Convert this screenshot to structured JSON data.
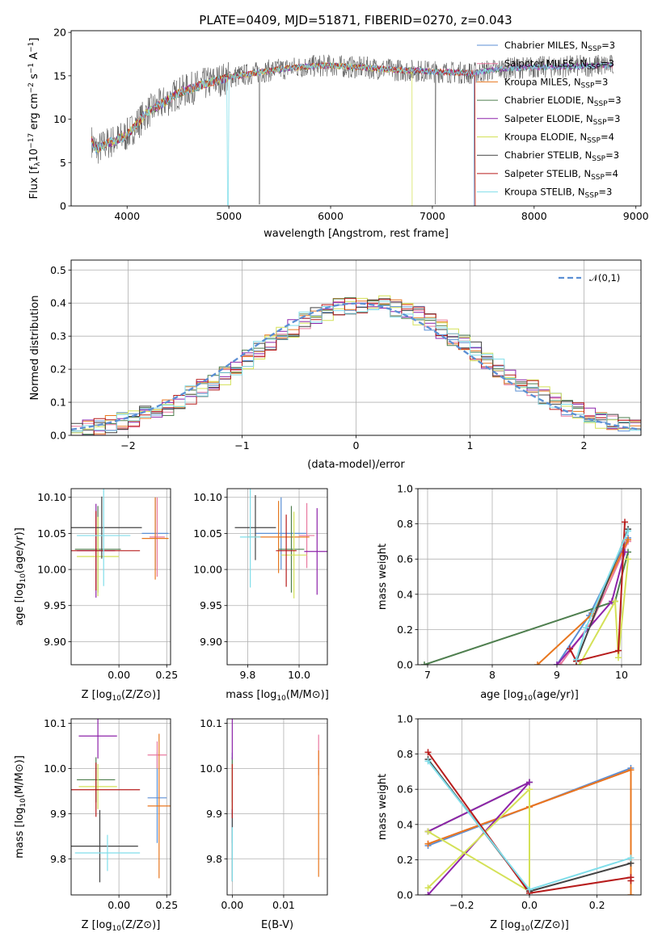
{
  "figure": {
    "title": "PLATE=0409, MJD=51871, FIBERID=0270, z=0.043"
  },
  "series": [
    {
      "name": "Chabrier MILES, N$_{SSP}$=3",
      "model": "Chabrier MILES",
      "nssp": "3",
      "color": "#5b8fd4"
    },
    {
      "name": "Salpeter MILES, N$_{SSP}$=3",
      "model": "Salpeter MILES",
      "nssp": "3",
      "color": "#e8799f"
    },
    {
      "name": "Kroupa MILES, N$_{SSP}$=3",
      "model": "Kroupa MILES",
      "nssp": "3",
      "color": "#e8771f"
    },
    {
      "name": "Chabrier ELODIE, N$_{SSP}$=3",
      "model": "Chabrier ELODIE",
      "nssp": "3",
      "color": "#4f7f4f"
    },
    {
      "name": "Salpeter ELODIE, N$_{SSP}$=3",
      "model": "Salpeter ELODIE",
      "nssp": "3",
      "color": "#8e24aa"
    },
    {
      "name": "Kroupa ELODIE, N$_{SSP}$=4",
      "model": "Kroupa ELODIE",
      "nssp": "4",
      "color": "#d4e157"
    },
    {
      "name": "Chabrier STELIB, N$_{SSP}$=3",
      "model": "Chabrier STELIB",
      "nssp": "3",
      "color": "#444444"
    },
    {
      "name": "Salpeter STELIB, N$_{SSP}$=4",
      "model": "Salpeter STELIB",
      "nssp": "4",
      "color": "#b71c1c"
    },
    {
      "name": "Kroupa STELIB, N$_{SSP}$=3",
      "model": "Kroupa STELIB",
      "nssp": "3",
      "color": "#80deea"
    }
  ],
  "chart_data": [
    {
      "id": "spectrum",
      "type": "line",
      "title": "PLATE=0409, MJD=51871, FIBERID=0270, z=0.043",
      "xlabel": "wavelength [Angstrom, rest frame]",
      "ylabel": "Flux [f_λ 10^{-17} erg cm^{-2} s^{-1} A^{-1}]",
      "ylabel_parts": {
        "pre": "Flux [f",
        "sub": "λ",
        "mid": "10",
        "sup1": "−17",
        "post1": " erg cm",
        "sup2": "−2",
        "post2": " s",
        "sup3": "−1",
        "post3": " A",
        "sup4": "−1",
        "end": "]"
      },
      "xlim": [
        3450,
        9050
      ],
      "ylim": [
        0,
        20.2
      ],
      "xticks": [
        4000,
        5000,
        6000,
        7000,
        8000,
        9000
      ],
      "yticks": [
        0,
        5,
        10,
        15,
        20
      ],
      "x": [
        3650,
        3700,
        3800,
        3900,
        4000,
        4100,
        4200,
        4300,
        4400,
        4500,
        4600,
        4700,
        4800,
        4900,
        5000,
        5200,
        5400,
        5600,
        5800,
        6000,
        6200,
        6400,
        6600,
        6800,
        7000,
        7200,
        7400,
        7600,
        7800,
        8000,
        8200,
        8400,
        8600,
        8800
      ],
      "y": [
        7.5,
        6.5,
        7.2,
        7.6,
        8.2,
        9.5,
        10.8,
        11.5,
        12.2,
        13.0,
        13.4,
        13.8,
        14.2,
        14.5,
        14.8,
        15.2,
        15.6,
        15.9,
        16.1,
        16.2,
        16.0,
        15.9,
        15.7,
        15.6,
        15.5,
        15.4,
        15.3,
        15.7,
        15.9,
        16.0,
        16.0,
        16.1,
        16.2,
        16.2
      ],
      "grid": false,
      "legend_position": "top-right"
    },
    {
      "id": "residuals",
      "type": "histogram",
      "xlabel": "(data-model)/error",
      "ylabel": "Normed distribution",
      "xlim": [
        -2.5,
        2.5
      ],
      "ylim": [
        0,
        0.53
      ],
      "xticks": [
        -2,
        -1,
        0,
        1,
        2
      ],
      "xtick_labels": [
        "−2",
        "−1",
        "0",
        "1",
        "2"
      ],
      "yticks": [
        0.0,
        0.1,
        0.2,
        0.3,
        0.4,
        0.5
      ],
      "ytick_labels": [
        "0.0",
        "0.1",
        "0.2",
        "0.3",
        "0.4",
        "0.5"
      ],
      "bin_width": 0.1,
      "reference_curve": {
        "name": "𝒩(0,1)",
        "mean": 0,
        "sigma": 1,
        "style": "dashed"
      },
      "grid": true,
      "legend_position": "top-right"
    },
    {
      "id": "age_vs_Z",
      "type": "errorbar",
      "xlabel": "Z [log10(Z/Z⊙)]",
      "ylabel": "age [log10(age/yr)]",
      "xlim": [
        -0.25,
        0.27
      ],
      "ylim": [
        9.868,
        10.112
      ],
      "xticks": [
        0.0,
        0.25
      ],
      "xtick_labels": [
        "0.00",
        "0.25"
      ],
      "yticks": [
        9.9,
        9.95,
        10.0,
        10.05,
        10.1
      ],
      "ytick_labels": [
        "9.90",
        "9.95",
        "10.00",
        "10.05",
        "10.10"
      ],
      "points": [
        {
          "series": 0,
          "x": 0.19,
          "xerr": 0.07,
          "y": 10.05,
          "yerr": 0.05
        },
        {
          "series": 1,
          "x": 0.2,
          "xerr": 0.04,
          "y": 10.045,
          "yerr": 0.055
        },
        {
          "series": 2,
          "x": 0.19,
          "xerr": 0.07,
          "y": 10.043,
          "yerr": 0.057
        },
        {
          "series": 3,
          "x": -0.11,
          "xerr": 0.12,
          "y": 10.028,
          "yerr": 0.06
        },
        {
          "series": 4,
          "x": -0.12,
          "xerr": 0.1,
          "y": 10.026,
          "yerr": 0.065
        },
        {
          "series": 5,
          "x": -0.11,
          "xerr": 0.11,
          "y": 10.018,
          "yerr": 0.055
        },
        {
          "series": 6,
          "x": -0.09,
          "xerr": 0.21,
          "y": 10.058,
          "yerr": 0.043
        },
        {
          "series": 7,
          "x": -0.12,
          "xerr": 0.23,
          "y": 10.026,
          "yerr": 0.055
        },
        {
          "series": 8,
          "x": -0.08,
          "xerr": 0.14,
          "y": 10.047,
          "yerr": 0.07
        }
      ],
      "grid": true
    },
    {
      "id": "age_vs_mass",
      "type": "errorbar",
      "xlabel": "mass [log10(M/M⊙)]",
      "ylabel": "",
      "xlim": [
        9.72,
        10.11
      ],
      "ylim": [
        9.868,
        10.112
      ],
      "xticks": [
        9.8,
        10.0
      ],
      "xtick_labels": [
        "9.8",
        "10.0"
      ],
      "yticks": [
        9.9,
        9.95,
        10.0,
        10.05,
        10.1
      ],
      "ytick_labels": [
        "9.90",
        "9.95",
        "10.00",
        "10.05",
        "10.10"
      ],
      "points": [
        {
          "series": 0,
          "x": 9.93,
          "xerr": 0.1,
          "y": 10.05,
          "yerr": 0.05
        },
        {
          "series": 1,
          "x": 10.03,
          "xerr": 0.03,
          "y": 10.047,
          "yerr": 0.045
        },
        {
          "series": 2,
          "x": 9.92,
          "xerr": 0.12,
          "y": 10.045,
          "yerr": 0.05
        },
        {
          "series": 3,
          "x": 9.97,
          "xerr": 0.05,
          "y": 10.028,
          "yerr": 0.06
        },
        {
          "series": 4,
          "x": 10.07,
          "xerr": 0.05,
          "y": 10.025,
          "yerr": 0.06
        },
        {
          "series": 5,
          "x": 9.98,
          "xerr": 0.05,
          "y": 10.02,
          "yerr": 0.06
        },
        {
          "series": 6,
          "x": 9.83,
          "xerr": 0.08,
          "y": 10.058,
          "yerr": 0.045
        },
        {
          "series": 7,
          "x": 9.95,
          "xerr": 0.04,
          "y": 10.026,
          "yerr": 0.05
        },
        {
          "series": 8,
          "x": 9.81,
          "xerr": 0.04,
          "y": 10.045,
          "yerr": 0.07
        }
      ],
      "grid": true
    },
    {
      "id": "massweight_vs_age",
      "type": "line",
      "xlabel": "age [log10(age/yr)]",
      "ylabel": "mass weight",
      "xlim": [
        6.85,
        10.3
      ],
      "ylim": [
        0,
        1.0
      ],
      "xticks": [
        7,
        8,
        9,
        10
      ],
      "xtick_labels": [
        "7",
        "8",
        "9",
        "10"
      ],
      "yticks": [
        0.0,
        0.2,
        0.4,
        0.6,
        0.8,
        1.0
      ],
      "ytick_labels": [
        "0.0",
        "0.2",
        "0.4",
        "0.6",
        "0.8",
        "1.0"
      ],
      "lines": [
        {
          "series": 0,
          "x": [
            9.0,
            9.5,
            10.1
          ],
          "y": [
            0.0,
            0.28,
            0.72
          ]
        },
        {
          "series": 1,
          "x": [
            9.05,
            9.55,
            10.1
          ],
          "y": [
            0.0,
            0.25,
            0.7
          ]
        },
        {
          "series": 2,
          "x": [
            8.7,
            9.55,
            10.1
          ],
          "y": [
            0.0,
            0.29,
            0.71
          ]
        },
        {
          "series": 3,
          "x": [
            6.95,
            9.9,
            10.1
          ],
          "y": [
            0.0,
            0.36,
            0.64
          ]
        },
        {
          "series": 4,
          "x": [
            9.0,
            9.85,
            10.05
          ],
          "y": [
            0.0,
            0.36,
            0.64
          ]
        },
        {
          "series": 5,
          "x": [
            9.35,
            9.9,
            9.95,
            10.1
          ],
          "y": [
            0.0,
            0.36,
            0.04,
            0.6
          ]
        },
        {
          "series": 6,
          "x": [
            9.3,
            10.1
          ],
          "y": [
            0.02,
            0.77
          ]
        },
        {
          "series": 7,
          "x": [
            9.2,
            9.3,
            9.95,
            10.05
          ],
          "y": [
            0.09,
            0.02,
            0.08,
            0.81
          ]
        },
        {
          "series": 8,
          "x": [
            9.3,
            9.45,
            10.1
          ],
          "y": [
            0.03,
            0.21,
            0.76
          ]
        }
      ],
      "grid": true
    },
    {
      "id": "mass_vs_Z",
      "type": "errorbar",
      "xlabel": "Z [log10(Z/Z⊙)]",
      "ylabel": "mass [log10(M/M⊙)]",
      "xlim": [
        -0.25,
        0.27
      ],
      "ylim": [
        9.72,
        10.11
      ],
      "xticks": [
        0.0,
        0.25
      ],
      "xtick_labels": [
        "0.00",
        "0.25"
      ],
      "yticks": [
        9.8,
        9.9,
        10.0,
        10.1
      ],
      "ytick_labels": [
        "9.8",
        "9.9",
        "10.0",
        "10.1"
      ],
      "points": [
        {
          "series": 0,
          "x": 0.2,
          "xerr": 0.05,
          "y": 9.935,
          "yerr": 0.1
        },
        {
          "series": 1,
          "x": 0.2,
          "xerr": 0.05,
          "y": 10.03,
          "yerr": 0.03
        },
        {
          "series": 2,
          "x": 0.21,
          "xerr": 0.06,
          "y": 9.917,
          "yerr": 0.16
        },
        {
          "series": 3,
          "x": -0.12,
          "xerr": 0.1,
          "y": 9.975,
          "yerr": 0.05
        },
        {
          "series": 4,
          "x": -0.11,
          "xerr": 0.1,
          "y": 10.072,
          "yerr": 0.05
        },
        {
          "series": 5,
          "x": -0.11,
          "xerr": 0.1,
          "y": 9.96,
          "yerr": 0.05
        },
        {
          "series": 6,
          "x": -0.1,
          "xerr": 0.2,
          "y": 9.828,
          "yerr": 0.08
        },
        {
          "series": 7,
          "x": -0.12,
          "xerr": 0.23,
          "y": 9.953,
          "yerr": 0.06
        },
        {
          "series": 8,
          "x": -0.06,
          "xerr": 0.17,
          "y": 9.813,
          "yerr": 0.04
        }
      ],
      "grid": true
    },
    {
      "id": "mass_vs_EBV",
      "type": "errorbar",
      "xlabel": "E(B-V)",
      "ylabel": "",
      "xlim": [
        -0.001,
        0.0185
      ],
      "ylim": [
        9.72,
        10.11
      ],
      "xticks": [
        0.0,
        0.01
      ],
      "xtick_labels": [
        "0.00",
        "0.01"
      ],
      "yticks": [
        9.8,
        9.9,
        10.0,
        10.1
      ],
      "ytick_labels": [
        "9.8",
        "9.9",
        "10.0",
        "10.1"
      ],
      "points": [
        {
          "series": 0,
          "x": 0.0,
          "xerr": 0,
          "y": 9.935,
          "yerr": 0.1
        },
        {
          "series": 1,
          "x": 0.0168,
          "xerr": 0,
          "y": 10.03,
          "yerr": 0.045
        },
        {
          "series": 2,
          "x": 0.0168,
          "xerr": 0,
          "y": 9.9,
          "yerr": 0.14
        },
        {
          "series": 3,
          "x": 0.0,
          "xerr": 0,
          "y": 9.975,
          "yerr": 0.05
        },
        {
          "series": 4,
          "x": 0.0,
          "xerr": 0,
          "y": 10.07,
          "yerr": 0.05
        },
        {
          "series": 5,
          "x": 0.0,
          "xerr": 0,
          "y": 9.96,
          "yerr": 0.05
        },
        {
          "series": 6,
          "x": 0.0,
          "xerr": 0,
          "y": 9.83,
          "yerr": 0.08
        },
        {
          "series": 7,
          "x": 0.0,
          "xerr": 0,
          "y": 9.95,
          "yerr": 0.06
        },
        {
          "series": 8,
          "x": 0.0,
          "xerr": 0,
          "y": 9.81,
          "yerr": 0.06
        }
      ],
      "grid": true
    },
    {
      "id": "massweight_vs_Z",
      "type": "line",
      "xlabel": "Z [log10(Z/Z⊙)]",
      "ylabel": "mass weight",
      "xlim": [
        -0.33,
        0.33
      ],
      "ylim": [
        0,
        1.0
      ],
      "xticks": [
        -0.2,
        0.0,
        0.2
      ],
      "xtick_labels": [
        "−0.2",
        "0.0",
        "0.2"
      ],
      "yticks": [
        0.0,
        0.2,
        0.4,
        0.6,
        0.8,
        1.0
      ],
      "ytick_labels": [
        "0.0",
        "0.2",
        "0.4",
        "0.6",
        "0.8",
        "1.0"
      ],
      "lines": [
        {
          "series": 0,
          "x": [
            -0.3,
            0.0,
            0.3
          ],
          "y": [
            0.28,
            0.5,
            0.72
          ]
        },
        {
          "series": 1,
          "x": [
            -0.3,
            0.0,
            0.3
          ],
          "y": [
            0.29,
            0.5,
            0.71
          ]
        },
        {
          "series": 2,
          "x": [
            -0.3,
            0.0,
            0.3,
            0.3
          ],
          "y": [
            0.29,
            0.5,
            0.71,
            0.0
          ]
        },
        {
          "series": 3,
          "x": [
            -0.3,
            0.0
          ],
          "y": [
            0.36,
            0.64
          ]
        },
        {
          "series": 4,
          "x": [
            -0.3,
            0.0,
            -0.3
          ],
          "y": [
            0.0,
            0.64,
            0.36
          ]
        },
        {
          "series": 5,
          "x": [
            -0.3,
            0.0,
            0.0,
            -0.3
          ],
          "y": [
            0.04,
            0.6,
            0.02,
            0.36
          ]
        },
        {
          "series": 6,
          "x": [
            -0.3,
            0.0,
            0.3
          ],
          "y": [
            0.77,
            0.02,
            0.18
          ]
        },
        {
          "series": 7,
          "x": [
            -0.3,
            0.0,
            0.3,
            0.3
          ],
          "y": [
            0.81,
            0.01,
            0.1,
            0.08
          ]
        },
        {
          "series": 8,
          "x": [
            -0.3,
            0.0,
            0.3
          ],
          "y": [
            0.76,
            0.03,
            0.21
          ]
        }
      ],
      "grid": true
    }
  ]
}
